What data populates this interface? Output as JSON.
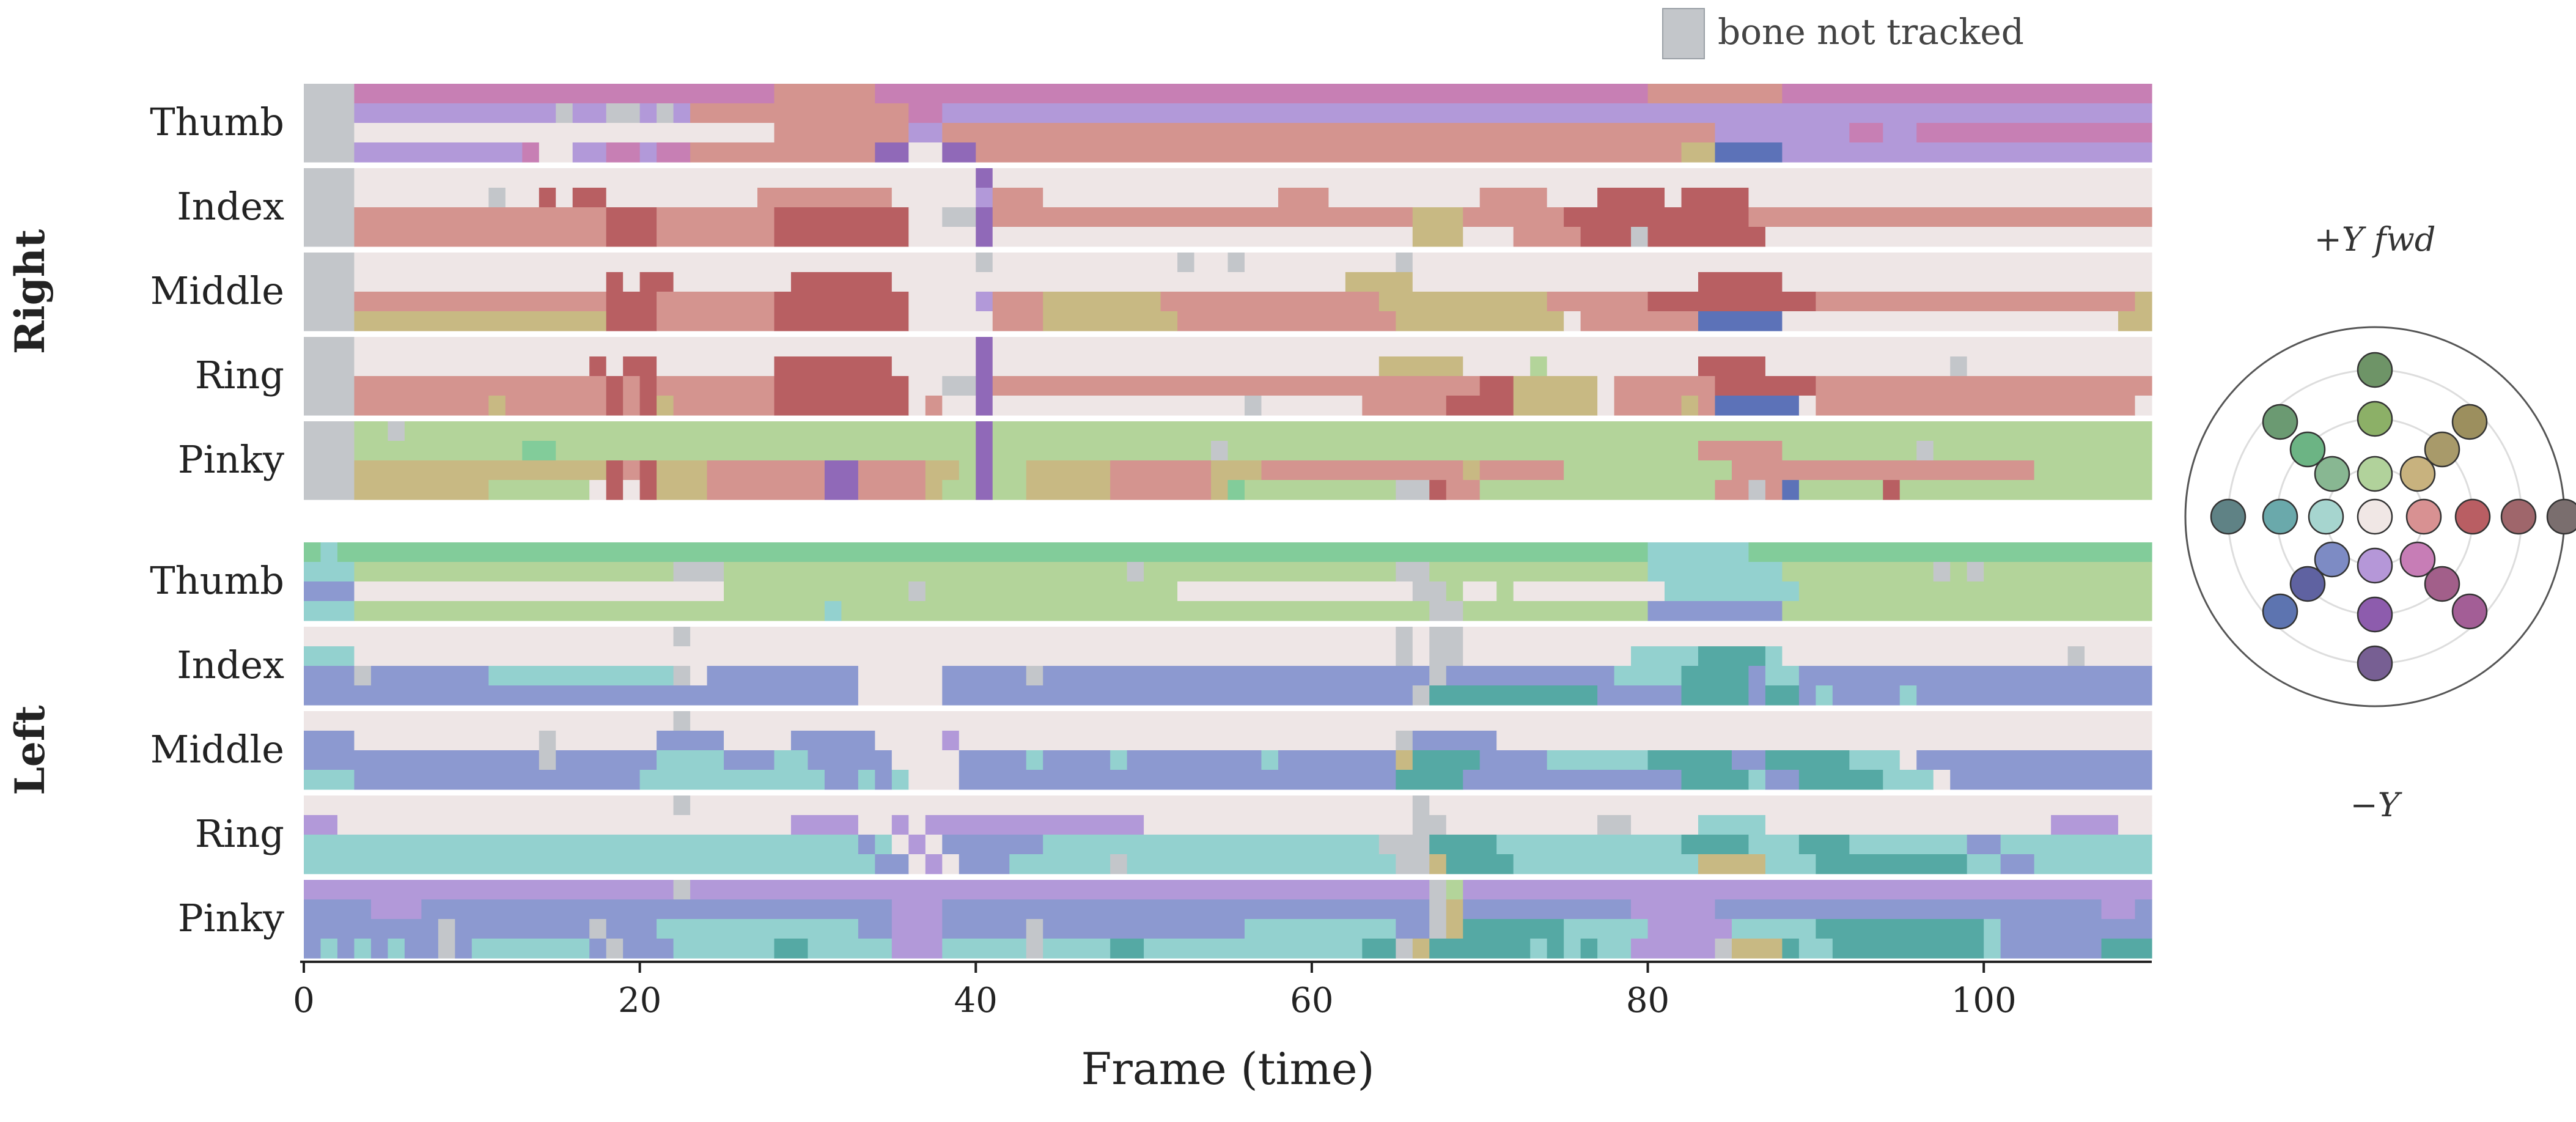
{
  "chart_data": {
    "type": "heatmap",
    "xlabel": "Frame (time)",
    "xlim": [
      0,
      110
    ],
    "x_ticks": [
      "0",
      "20",
      "40",
      "60",
      "80",
      "100"
    ],
    "legend": {
      "label": "bone not tracked",
      "color": "#c3c6ca"
    },
    "direction_key": {
      "top_label": "+Y fwd",
      "bottom_label": "−Y"
    },
    "groups": [
      {
        "hand": "Right",
        "fingers": [
          "Thumb",
          "Index",
          "Middle",
          "Ring",
          "Pinky"
        ]
      },
      {
        "hand": "Left",
        "fingers": [
          "Thumb",
          "Index",
          "Middle",
          "Ring",
          "Pinky"
        ]
      }
    ],
    "palette": {
      "T": "#c3c6ca",
      "W": "#eee6e6",
      "R": "#d4948f",
      "D": "#b85f62",
      "M": "#c77fb4",
      "V": "#b299d9",
      "Y": "#c8b983",
      "G": "#b3d49a",
      "E": "#82cc9a",
      "B": "#8c99d0",
      "C": "#93d1cf",
      "K": "#55a9a4",
      "P": "#9069b8",
      "N": "#5c72b8"
    },
    "rows": {
      "Right": {
        "Thumb": [
          "TTTMMMMMMMMMMMMMMMMMMMMMMMMMRRRRRRMMMMMMMMMMMMMMMMMMMMMMMMMMMMMMMMMMMMMMMMMMMMMMRRRRRRRRMMMMMMMMMMMMMMMMMMMMMMMM",
          "TTTVVVVVVVVVVVVTVVTTVTVRRRRRRRRRRRRRMMVVVVVVVVVVVVVVVVVVVVVVVVVVVVVVVVVVVVVVVVVVVVVVVVVVVVVVVVVVVVVVVVVVVVVVVV",
          "TTTWWWWWWWWWWWWWWWWWWWWWWWWWRRRRRRRRVVRRRRRRRRRRRRRRRRRRRRRRRRRRRRRRRRRRRRRRRRRRRRRRVVVVVVVVMMVVMMMMMMMMMMMMMMMM",
          "TTTVVVVVVVVVVMWWVVMMVMMRRRRRRRRRRRPPWWPPRRRRRRRRRRRRRRRRRRRRRRRRRRRRRRRRRRRRRRRRRRYYNNNNVVVVVVVVVVVVVVVVVVVVVVVV"
        ],
        "Index": [
          "TTTWWWWWWWWWWWWWWWWWWWWWWWWWWWWWWWWWWWWWPWWWWWWWWWWWWWWWWWWWWWWWWWWWWWWWWWWWWWWWWWWWWWWWWWWWWWWWWWWWWWWWWWWWWWWW",
          "TTTWWWWWWWWTWWDWDDWWWWWWWWWRRRRRRRRWWWWWVRRRWWWWWWWWWWWWWWRRRWWWWWWWWWRRRRWWWDDDDWDDDDWWWWWWWWWWWWWWWWWWWWWWWWW",
          "TTTRRRRRRRRRRRRRRRDDDRRRRRRRDDDDDDDDWWTTPRRRRRRRRRRRRRRRRRRRRRRRRRYYYRRRRRRDDDDDDDDDDDRRRRRRRRRRRRRRRRRRRRRRRRRRR",
          "TTTRRRRRRRRRRRRRRRDDDRRRRRRRDDDDDDDDWWWWPWWWWWWWWWWWWWWWWWWWWWWWWWYYYWWWRRRRDDDTDDDDDDDWWWWWWWWWWWWWWWWWWWWWWWWWW"
        ],
        "Middle": [
          "TTTWWWWWWWWWWWWWWWWWWWWWWWWWWWWWWWWWWWWWTWWWWWWWWWWWTWWTWWWWWWWWWTWWWWWWWWWWWWWWWWWWWWWWWWWWWWWWWWWWWWWWWWWWWWWW",
          "TTTWWWWWWWWWWWWWWWDWDDWWWWWWWDDDDDDWWWWWWWWWWWWWWWWWWWWWWWWWWWYYYYWWWWWWWWWWWWWWWWWDDDDDWWWWWWWWWWWWWWWWWWWWWWWW",
          "TTTRRRRRRRRRRRRRRRDDDRRRRRRRDDDDDDDDWWWWVRRRYYYYYYYRRRRRRRRRRRRRYYYYYYYYYYRRRRRRDDDDDDDDDDRRRRRRRRRRRRRRRRRRRYYYYY",
          "TTTYYYYYYYYYYYYYYYDDDRRRRRRRDDDDDDDDWWWWWRRRYYYYYYYYRRRRRRRRRRRRRYYYYYYYYYYWRRRRRRRNNNNNWWWWWWWWWWWWWWWWWWWWYYYYY"
        ],
        "Ring": [
          "TTTWWWWWWWWWWWWWWWWWWWWWWWWWWWWWWWWWWWWWPWWWWWWWWWWWWWWWWWWWWWWWWWWWWWWWWWWWWWWWWWWWWWWWWWWWWWWWWWWWWWWWWWWWWWWW",
          "TTTWWWWWWWWWWWWWWDWDDWWWWWWWDDDDDDDWWWWWPWWWWWWWWWWWWWWWWWWWWWWWYYYYYWWWWGWWWWWWWWWDDDDWWWWWWWWWWWTWWWWWWWWWWWWWWW",
          "TTTRRRRRRRRRRRRRRRDRDRRRRRRRDDDDDDDDWWTTPRRRRRRRRRRRRRRRRRRRRRRRRRRRRRDDYYYYYWRRRRRRDDDDDDRRRRRRRRRRRRRRRRRRRRRRRR",
          "TTTRRRRRRRRYRRRRRRDRDYRRRRRRDDDDDDDDWRWWPWWWWWWWWWWWWWWWTWWWWWWRRRRRDDDDYYYYYWRRRRYRNNNNNWRRRRRRRRRRRRRRRRRRRWRRRR"
        ],
        "Pinky": [
          "TTTGGTGGGGGGGGGGGGGGGGGGGGGGGGGGGGGGGGGGPGGGGGGGGGGGGGGGGGGGGGGGGGGGGGGGGGGGGGGGGGGGGGGGGGGGGGGGGGGGGGGGGGGGGGGG",
          "TTTGGGGGGGGGGEEGGGGGGGGGGGGGGGGGGGGGGGGGPGGGGGGGGGGGGGTGGGGGGGGGGGGGGGGGGGGGGGGGGGGRRRRRGGGGGGGGTGGGGGGGGGGGGGGG",
          "TTTYYYYYYYYYYYYYYYDRDYYYRRRRRRRPPRRRRYYGPGGYYYYYRRRRRRYYYRRRRRRRRRRRRYRRRRRGGGGGGGGGGRRRRRRRRRRRRRRRRRRGGGGGGGGG",
          "TTTYYYYYYYYGGGGGGWDWDYYYRRRRRRRPPRRRRYGGPGGYYYYYRRRRRRYEGGGGGGGGGTTDRRGGGGGGGGGGGGGGRRTRNGGGGGDGGGGGGGGGGGGGGGGRR"
        ]
      },
      "Left": {
        "Thumb": [
          "ECEEEEEEEEEEEEEEEEEEEEEEEEEEEEEEEEEEEEEEEEEEEEEEEEEEEEEEEEEEEEEEEEEEEEEEEEEEEEEECCCCCCEEEEEEEEEEEEEEEEEEEEEEEEEEE",
          "CCCGGGGGGGGGGGGGGGGGGGTTTGGGGGGGGGGGGGGGGGGGGGGGGTGGGGGGGGGGGGGGGTTGGGGGGGGGGGGGCCCCCCCCGGGGGGGGGTGTGGGGGGGGGGGGG",
          "BBBWWWWWWWWWWWWWWWWWWWWWWGGGGGGGGGGGTGGGGGGGGGGGGGGGWWWWWWWWWWWWWWTTGWWGWWWWWWWWWCCCCCCCCGGGGGGGGGGGGGGGGGGGGGGGGG",
          "CCCGGGGGGGGGGGGGGGGGGGGGGGGGGGGCGGGGGGGGGGGGGGGGGGGGGGGGGGGGGGGGGGGTTGGGGGGGGGGGBBBBBBBBGGGGGGGGGGGGGGGGGGGGGGGGG"
        ],
        "Index": [
          "WWWWWWWWWWWWWWWWWWWWWWTWWWWWWWWWWWWWWWWWWWWWWWWWWWWWWWWWWWWWWWWWWTWTTWWWWWWWWWWWWWWWWWWWWWWWWWWWWWWWWWWWWWWWWWWW",
          "CCCWWWWWWWWWWWWWWWWWWWWWWWWWWWWWWWWWWWWWWWWWWWWWWWWWWWWWWWWWWWWWWTWTTWWWWWWWWWWCCCCKKKKCWWWWWWWWWWWWWWWWWTWWWWWWWW",
          "BBBTBBBBBBBCCCCCCCCCCCTWBBBBBBBBBWWWWWBBBBBTBBBBBBBBBBBBBBBBBBBBBBBTBBBBBBBBBBCCCCKKKKBCCBBBBBBBBBBBBBBBBBBBBBBBBB",
          "BBBBBBBBBBBBBBBBBBBBBBBBBBBBBBBBBWWWWWBBBBBBBBBBBBBBBBBBBBBBBBBBBBTKKKKKKKKKKBBBBBKKKKBKKBCBBBBCBBBBBBBBBBBBBBBBB"
        ],
        "Middle": [
          "WWWWWWWWWWWWWWWWWWWWWWTWWWWWWWWWWWWWWWWWWWWWWWWWWWWWWWWWWWWWWWWWWWWWWWWWWWWWWWWWWWWWWWWWWWWWWWWWWWWWWWWWWWWWWWWWW",
          "BBBWWWWWWWWWWWTWWWWWWBBBBWWWWBBBBBWWWWVWWWWWWWWWWWWWWWWWWWWWWWWWWTBBBBBWWWWWWWWWWWWWWWWWWWWWWWWWWWWWWWWWWWWWWWWWW",
          "BBBBBBBBBBBBBBTBBBBBBCCCCBBBCCBBBBBWWWWBBBBCBBBBCBBBBBBBBCBBBBBBBYKKKKBBBBCCCCCCKKKKKBBKKKKKCCCWBBBBBBBBBBBBBBBBB",
          "CCCBBBBBBBBBBBBBBBBBCCCCCCCCCCCBBCBCWWWBBBBBBBBBBBBBBBBBBBBBBBBBBKKKKBBBBBBBBBBBBBKKKKCBBKKKKKCCCWBBBBBBBBBBBBBBBB"
        ],
        "Ring": [
          "WWWWWWWWWWWWWWWWWWWWWWTWWWWWWWWWWWWWWWWWWWWWWWWWWWWWWWWWWWWWWWWWWWTWWWWWWWWWWWWWWWWWWWWWWWWWWWWWWWWWWWWWWWWWWWWWW",
          "VVWWWWWWWWWWWWWWWWWWWWWWWWWWWVVVVWWVWVVVVVVVVVVVVVWWWWWWWWWWWWWWWWTTWWWWWWWWWTTWWWWCCCCWWWWWWWWWWWWWWWWWVVVVWWVWWW",
          "CCCCCCCCCCCCCCCCCCCCCCCCCCCCCCCCCBCWVWBBBBBBCCCCCCCCCCCCCCCCCCCCTTTKKKKCCCCCCCCCCCKKKKCCCKKKCCCCCCCBBCCCCCCCCCCCC",
          "CCCCCCCCCCCCCCCCCCCCCCCCCCCCCCCCCCBBWVWBBBCCCCCCTCCCCCCCCCCCCCCCCTTYKKKKCCCCCCCCCCCYYYYCCCKKKKKKKKKCCBBCCCCCCCCCCC"
        ],
        "Pinky": [
          "VVVVVVVVVVVVVVVVVVVVVVTVVVVVVVVVVVVVVVVVVVVVVVVVVVVVVVVVVVVVVVVVVVVTGVVVVVVVVVVVVVVVVVVVVVVVVVVVVVVVVVVVVVVVVVVV",
          "BBBBVVVBBBBBBBBBBBBBBBBBBBBBBBBBBBBVVVBBBBBBBBBBBBBBBBBBBBBBBBBBBBBTYBBBBBBBBBBVVVVVBBBBBBBBBBBBBBBBBBBBBBBVVBTBB",
          "BBBBBBBBTBBBBBBBBTBBBCCCCCCCCCCCCBBVVVBBBBBTBBBBBBBBBBBBCCCCCCCCCBBTYKKKKKKCCCCCVVVVVCCCCCKKKKKKKKKKCBBBBBBBBBBBB",
          "BCBCBCBBTBCCCCCCCBTBBBCCCCCCKKCCCCCVVVCCCCCTCCCCKKCCCCCCCCCCCCCKKTYKKKKKKCKCKCCVVVVVTYYYKCCKKKKKKKKKCBBBBBBKKKKKKT"
        ]
      }
    },
    "direction_colors": [
      "#6e9467",
      "#8cb067",
      "#9c8f5e",
      "#6b9a72",
      "#6cb484",
      "#a89a6a",
      "#88b792",
      "#b1d29b",
      "#c8b27e",
      "#5f8285",
      "#6aa9ab",
      "#a6d5cf",
      "#f0e7e5",
      "#d89192",
      "#b95e63",
      "#9f666b",
      "#7a6e6e",
      "#7d8bc4",
      "#b597d8",
      "#c77db6",
      "#5d74b0",
      "#8d5cad",
      "#a35e96",
      "#5f62a1",
      "#a25f8a",
      "#775f93"
    ]
  }
}
